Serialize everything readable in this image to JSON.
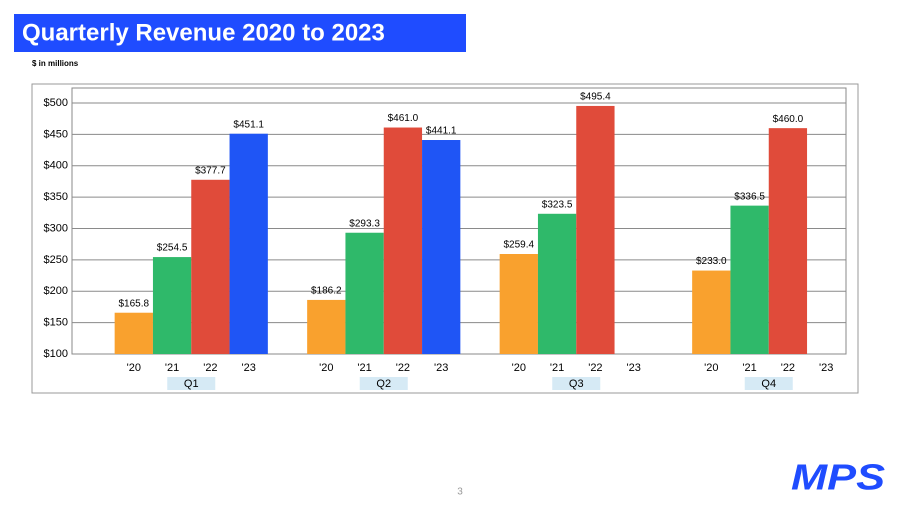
{
  "chart_data": {
    "type": "bar",
    "title": "Quarterly Revenue 2020 to 2023",
    "subtitle": "$ in millions",
    "categories": [
      "Q1",
      "Q2",
      "Q3",
      "Q4"
    ],
    "series": [
      {
        "name": "'20",
        "color": "#f9a12e",
        "values": [
          165.8,
          186.2,
          259.4,
          233.0
        ],
        "value_labels": [
          "$165.8",
          "$186.2",
          "$259.4",
          "$233.0"
        ]
      },
      {
        "name": "'21",
        "color": "#2fb96a",
        "values": [
          254.5,
          293.3,
          323.5,
          336.5
        ],
        "value_labels": [
          "$254.5",
          "$293.3",
          "$323.5",
          "$336.5"
        ]
      },
      {
        "name": "'22",
        "color": "#e04b3a",
        "values": [
          377.7,
          461.0,
          495.4,
          460.0
        ],
        "value_labels": [
          "$377.7",
          "$461.0",
          "$495.4",
          "$460.0"
        ]
      },
      {
        "name": "'23",
        "color": "#1f55f5",
        "values": [
          451.1,
          441.1,
          null,
          null
        ],
        "value_labels": [
          "$451.1",
          "$441.1",
          null,
          null
        ]
      }
    ],
    "ylim": [
      100,
      524
    ],
    "yticks": [
      {
        "value": 100,
        "label": "$100"
      },
      {
        "value": 150,
        "label": "$150"
      },
      {
        "value": 200,
        "label": "$200"
      },
      {
        "value": 250,
        "label": "$250"
      },
      {
        "value": 300,
        "label": "$300"
      },
      {
        "value": 350,
        "label": "$350"
      },
      {
        "value": 400,
        "label": "$400"
      },
      {
        "value": 450,
        "label": "$450"
      },
      {
        "value": 500,
        "label": "$500"
      }
    ],
    "grid": true
  },
  "page_number": "3",
  "logo": "MPS"
}
